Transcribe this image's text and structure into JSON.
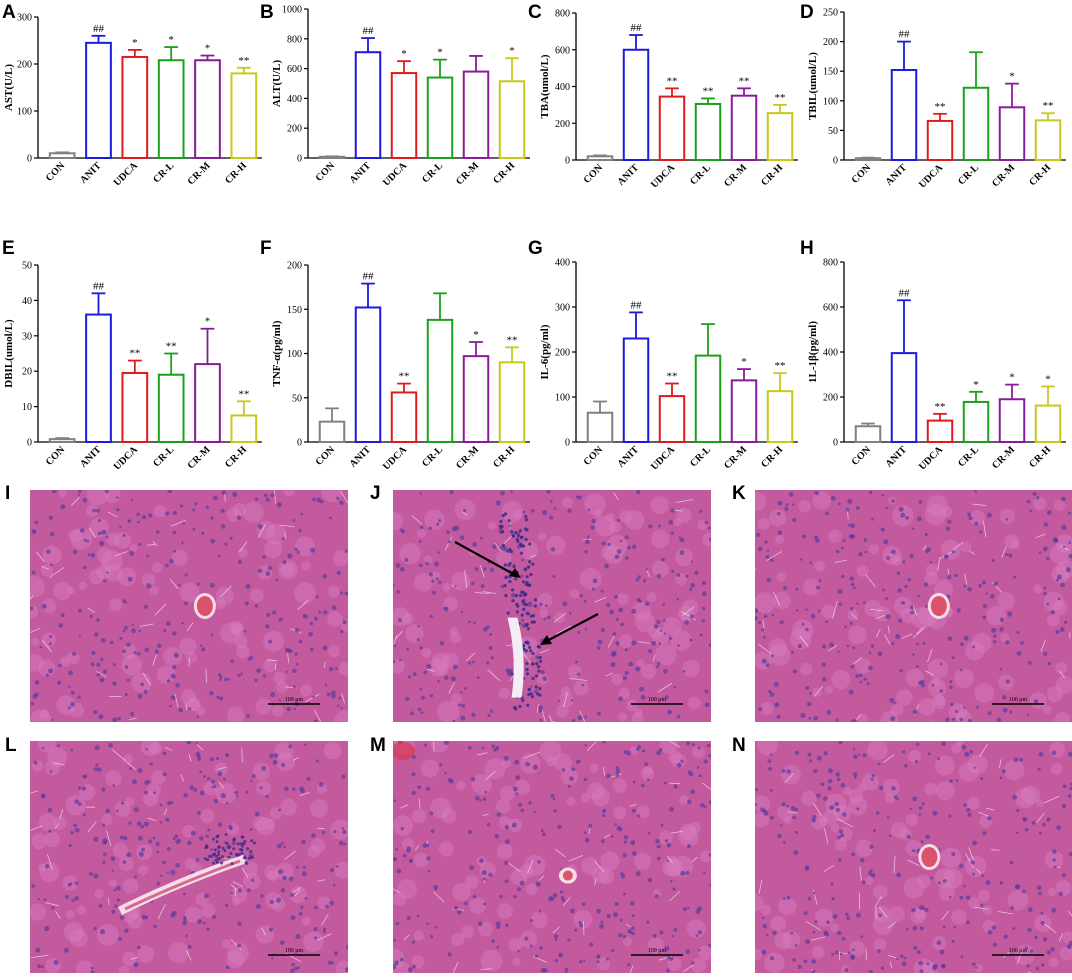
{
  "groups": [
    "CON",
    "ANIT",
    "UDCA",
    "CR-L",
    "CR-M",
    "CR-H"
  ],
  "group_colors": [
    "#808080",
    "#1a1ae0",
    "#e01a1a",
    "#1aa01a",
    "#8a1a9c",
    "#c8c81a"
  ],
  "chart_data": [
    {
      "letter": "A",
      "type": "bar",
      "ylabel": "AST(U/L)",
      "ylim": [
        0,
        300
      ],
      "ticks": [
        0,
        100,
        200,
        300
      ],
      "categories": [
        "CON",
        "ANIT",
        "UDCA",
        "CR-L",
        "CR-M",
        "CR-H"
      ],
      "values": [
        10,
        245,
        215,
        208,
        208,
        180
      ],
      "errors": [
        2,
        15,
        15,
        28,
        10,
        12
      ],
      "annotations": [
        "",
        "##",
        "*",
        "*",
        "*",
        "**"
      ]
    },
    {
      "letter": "B",
      "type": "bar",
      "ylabel": "ALT(U/L)",
      "ylim": [
        0,
        1000
      ],
      "ticks": [
        0,
        200,
        400,
        600,
        800,
        1000
      ],
      "categories": [
        "CON",
        "ANIT",
        "UDCA",
        "CR-L",
        "CR-M",
        "CR-H"
      ],
      "values": [
        8,
        710,
        570,
        540,
        580,
        515
      ],
      "errors": [
        3,
        95,
        80,
        120,
        105,
        155
      ],
      "annotations": [
        "",
        "##",
        "*",
        "*",
        "",
        "*"
      ]
    },
    {
      "letter": "C",
      "type": "bar",
      "ylabel": "TBA(umol/L)",
      "ylim": [
        0,
        800
      ],
      "ticks": [
        0,
        200,
        400,
        600,
        800
      ],
      "categories": [
        "CON",
        "ANIT",
        "UDCA",
        "CR-L",
        "CR-M",
        "CR-H"
      ],
      "values": [
        20,
        600,
        345,
        305,
        350,
        255
      ],
      "errors": [
        5,
        80,
        45,
        30,
        40,
        45
      ],
      "annotations": [
        "",
        "##",
        "**",
        "**",
        "**",
        "**"
      ]
    },
    {
      "letter": "D",
      "type": "bar",
      "ylabel": "TBIL(umol/L)",
      "ylim": [
        0,
        250
      ],
      "ticks": [
        0,
        50,
        100,
        150,
        200,
        250
      ],
      "categories": [
        "CON",
        "ANIT",
        "UDCA",
        "CR-L",
        "CR-M",
        "CR-H"
      ],
      "values": [
        3,
        152,
        66,
        122,
        89,
        67
      ],
      "errors": [
        1,
        48,
        12,
        60,
        40,
        12
      ],
      "annotations": [
        "",
        "##",
        "**",
        "",
        "*",
        "**"
      ]
    },
    {
      "letter": "E",
      "type": "bar",
      "ylabel": "DBIL(umol/L)",
      "ylim": [
        0,
        50
      ],
      "ticks": [
        0,
        10,
        20,
        30,
        40,
        50
      ],
      "categories": [
        "CON",
        "ANIT",
        "UDCA",
        "CR-L",
        "CR-M",
        "CR-H"
      ],
      "values": [
        0.8,
        36,
        19.5,
        19,
        22,
        7.5
      ],
      "errors": [
        0.3,
        6,
        3.5,
        6,
        10,
        4
      ],
      "annotations": [
        "",
        "##",
        "**",
        "**",
        "*",
        "**"
      ]
    },
    {
      "letter": "F",
      "type": "bar",
      "ylabel": "TNF-α(pg/ml)",
      "ylim": [
        0,
        200
      ],
      "ticks": [
        0,
        50,
        100,
        150,
        200
      ],
      "categories": [
        "CON",
        "ANIT",
        "UDCA",
        "CR-L",
        "CR-M",
        "CR-H"
      ],
      "values": [
        23,
        152,
        56,
        138,
        97,
        90
      ],
      "errors": [
        15,
        27,
        10,
        30,
        16,
        17
      ],
      "annotations": [
        "",
        "##",
        "**",
        "",
        "*",
        "**"
      ]
    },
    {
      "letter": "G",
      "type": "bar",
      "ylabel": "IL-6(pg/ml)",
      "ylim": [
        0,
        400
      ],
      "ticks": [
        0,
        100,
        200,
        300,
        400
      ],
      "categories": [
        "CON",
        "ANIT",
        "UDCA",
        "CR-L",
        "CR-M",
        "CR-H"
      ],
      "values": [
        65,
        230,
        102,
        192,
        137,
        113
      ],
      "errors": [
        25,
        58,
        28,
        70,
        25,
        40
      ],
      "annotations": [
        "",
        "##",
        "**",
        "",
        "*",
        "**"
      ]
    },
    {
      "letter": "H",
      "type": "bar",
      "ylabel": "1L-1β(pg/ml)",
      "ylim": [
        0,
        800
      ],
      "ticks": [
        0,
        200,
        400,
        600,
        800
      ],
      "categories": [
        "CON",
        "ANIT",
        "UDCA",
        "CR-L",
        "CR-M",
        "CR-H"
      ],
      "values": [
        70,
        395,
        95,
        178,
        190,
        162
      ],
      "errors": [
        12,
        235,
        30,
        45,
        65,
        85
      ],
      "annotations": [
        "",
        "##",
        "**",
        "*",
        "*",
        "*"
      ]
    }
  ],
  "micrographs": [
    {
      "letter": "I",
      "scale_bar": "100 μm",
      "lesions": "central-vein"
    },
    {
      "letter": "J",
      "scale_bar": "100 μm",
      "lesions": "inflammatory-infiltration"
    },
    {
      "letter": "K",
      "scale_bar": "100 μm",
      "lesions": "central-vein"
    },
    {
      "letter": "L",
      "scale_bar": "100 μm",
      "lesions": "bile-duct"
    },
    {
      "letter": "M",
      "scale_bar": "100 μm",
      "lesions": "small-vein"
    },
    {
      "letter": "N",
      "scale_bar": "100 μm",
      "lesions": "central-vein"
    }
  ],
  "colors": {
    "tissue": "#c45a9e",
    "tissue_light": "#d77fbe",
    "nucleus": "#5a3c9c",
    "vessel": "#d83a55"
  }
}
